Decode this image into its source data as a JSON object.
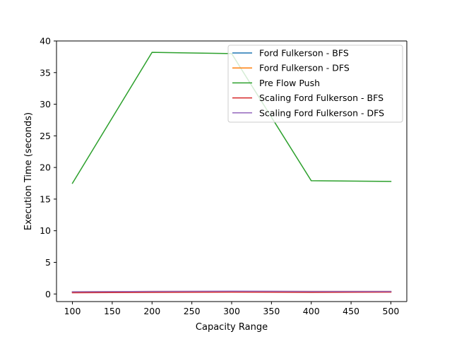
{
  "chart_data": {
    "type": "line",
    "title": "",
    "xlabel": "Capacity Range",
    "ylabel": "Execution Time (seconds)",
    "x": [
      100,
      200,
      300,
      400,
      500
    ],
    "xlim": [
      80,
      520
    ],
    "ylim": [
      -1.2,
      40
    ],
    "xticks": [
      100,
      150,
      200,
      250,
      300,
      350,
      400,
      450,
      500
    ],
    "xtick_labels": [
      "100",
      "150",
      "200",
      "250",
      "300",
      "350",
      "400",
      "450",
      "500"
    ],
    "yticks": [
      0,
      5,
      10,
      15,
      20,
      25,
      30,
      35,
      40
    ],
    "ytick_labels": [
      "0",
      "5",
      "10",
      "15",
      "20",
      "25",
      "30",
      "35",
      "40"
    ],
    "grid": false,
    "legend_position": "top-right",
    "series": [
      {
        "name": "Ford Fulkerson - BFS",
        "color": "#1f77b4",
        "values": [
          0.3,
          0.35,
          0.4,
          0.35,
          0.35
        ]
      },
      {
        "name": "Ford Fulkerson - DFS",
        "color": "#ff7f0e",
        "values": [
          0.35,
          0.4,
          0.4,
          0.4,
          0.4
        ]
      },
      {
        "name": "Pre Flow Push",
        "color": "#2ca02c",
        "values": [
          17.5,
          38.2,
          38.0,
          17.9,
          17.8
        ]
      },
      {
        "name": "Scaling Ford Fulkerson - BFS",
        "color": "#d62728",
        "values": [
          0.2,
          0.25,
          0.3,
          0.25,
          0.3
        ]
      },
      {
        "name": "Scaling Ford Fulkerson - DFS",
        "color": "#9467bd",
        "values": [
          0.35,
          0.4,
          0.45,
          0.4,
          0.4
        ]
      }
    ]
  }
}
